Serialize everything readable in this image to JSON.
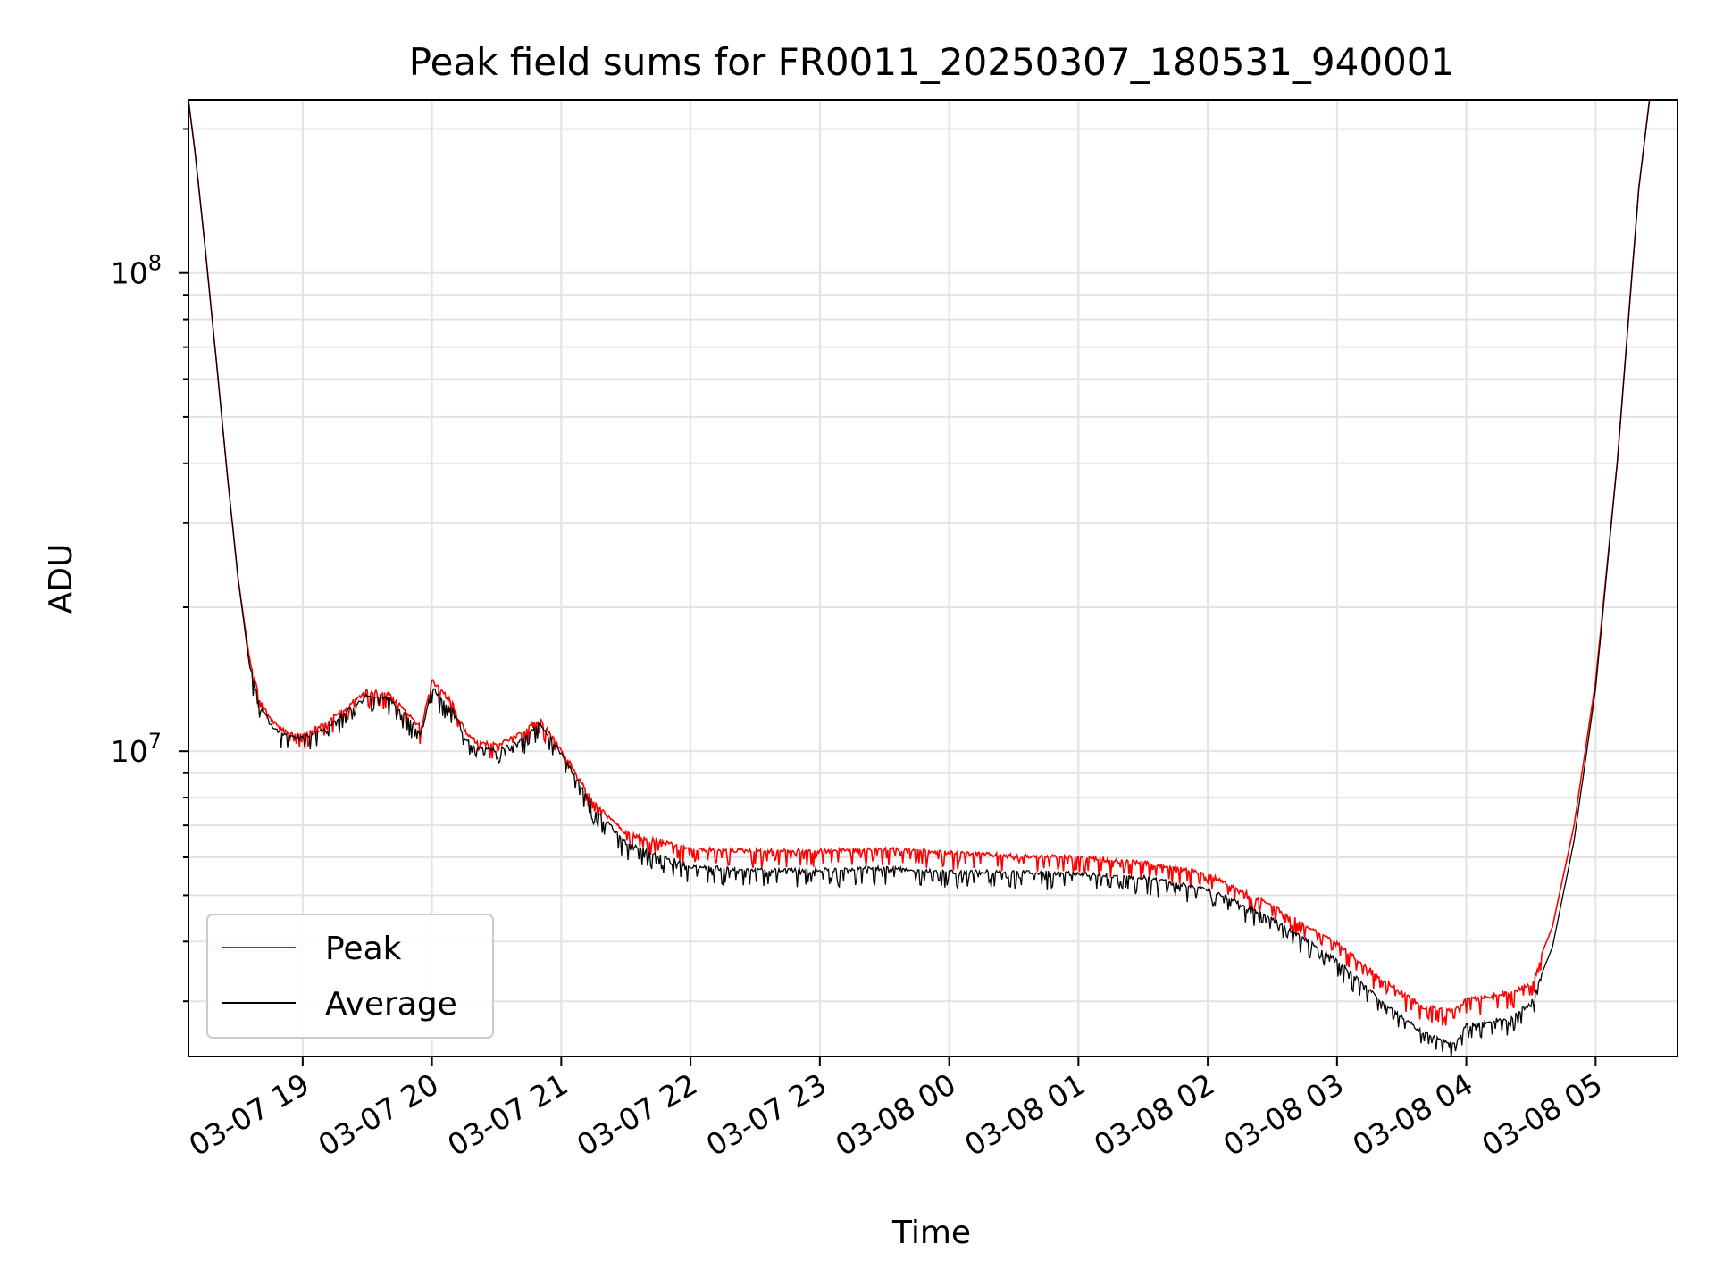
{
  "chart_data": {
    "type": "line",
    "title": "Peak field sums for FR0011_20250307_180531_940001",
    "xlabel": "Time",
    "ylabel": "ADU",
    "yscale": "log",
    "grid": true,
    "legend_position": "lower-left",
    "xlim": [
      "2025-03-07 18:07",
      "2025-03-08 05:38"
    ],
    "ylim": [
      2300000,
      230000000
    ],
    "x_ticks": [
      "03-07 19",
      "03-07 20",
      "03-07 21",
      "03-07 22",
      "03-07 23",
      "03-08 00",
      "03-08 01",
      "03-08 02",
      "03-08 03",
      "03-08 04",
      "03-08 05"
    ],
    "y_ticks": [
      {
        "value": 10000000,
        "base": "10",
        "exp": "7"
      },
      {
        "value": 100000000,
        "base": "10",
        "exp": "8"
      }
    ],
    "x": [
      "2025-03-07 18:07",
      "2025-03-07 18:10",
      "2025-03-07 18:15",
      "2025-03-07 18:20",
      "2025-03-07 18:25",
      "2025-03-07 18:30",
      "2025-03-07 18:35",
      "2025-03-07 18:40",
      "2025-03-07 18:45",
      "2025-03-07 18:50",
      "2025-03-07 18:55",
      "2025-03-07 19:00",
      "2025-03-07 19:10",
      "2025-03-07 19:20",
      "2025-03-07 19:30",
      "2025-03-07 19:40",
      "2025-03-07 19:50",
      "2025-03-07 19:55",
      "2025-03-07 20:00",
      "2025-03-07 20:10",
      "2025-03-07 20:15",
      "2025-03-07 20:20",
      "2025-03-07 20:30",
      "2025-03-07 20:40",
      "2025-03-07 20:50",
      "2025-03-07 21:00",
      "2025-03-07 21:15",
      "2025-03-07 21:30",
      "2025-03-07 22:00",
      "2025-03-07 22:30",
      "2025-03-07 23:00",
      "2025-03-07 23:30",
      "2025-03-08 00:00",
      "2025-03-08 00:30",
      "2025-03-08 01:00",
      "2025-03-08 01:30",
      "2025-03-08 02:00",
      "2025-03-08 02:30",
      "2025-03-08 03:00",
      "2025-03-08 03:20",
      "2025-03-08 03:40",
      "2025-03-08 03:55",
      "2025-03-08 04:00",
      "2025-03-08 04:10",
      "2025-03-08 04:20",
      "2025-03-08 04:30",
      "2025-03-08 04:40",
      "2025-03-08 04:50",
      "2025-03-08 05:00",
      "2025-03-08 05:10",
      "2025-03-08 05:20",
      "2025-03-08 05:25"
    ],
    "series": [
      {
        "name": "Peak",
        "color": "#ff0000",
        "values": [
          230000000,
          180000000,
          110000000,
          65000000,
          38000000,
          23000000,
          16000000,
          13000000,
          11800000,
          11200000,
          11000000,
          11000000,
          11500000,
          12500000,
          13500000,
          13300000,
          12000000,
          11300000,
          14200000,
          12700000,
          11200000,
          10600000,
          10400000,
          10900000,
          11800000,
          10200000,
          7900000,
          6800000,
          6300000,
          6250000,
          6250000,
          6300000,
          6200000,
          6100000,
          6050000,
          5900000,
          5600000,
          4800000,
          4000000,
          3400000,
          2950000,
          2900000,
          3050000,
          3100000,
          3150000,
          3300000,
          4300000,
          7000000,
          14000000,
          40000000,
          150000000,
          230000000
        ]
      },
      {
        "name": "Average",
        "color": "#000000",
        "values": [
          230000000,
          180000000,
          110000000,
          65000000,
          38000000,
          23000000,
          15500000,
          12700000,
          11500000,
          11000000,
          10800000,
          10800000,
          11200000,
          12200000,
          13200000,
          13000000,
          11700000,
          11000000,
          13700000,
          12300000,
          10800000,
          10300000,
          10100000,
          10600000,
          11500000,
          10000000,
          7700000,
          6500000,
          5800000,
          5700000,
          5700000,
          5750000,
          5650000,
          5650000,
          5600000,
          5500000,
          5200000,
          4500000,
          3700000,
          3050000,
          2600000,
          2450000,
          2700000,
          2750000,
          2800000,
          3000000,
          3900000,
          6500000,
          13500000,
          40000000,
          150000000,
          230000000
        ]
      }
    ]
  }
}
